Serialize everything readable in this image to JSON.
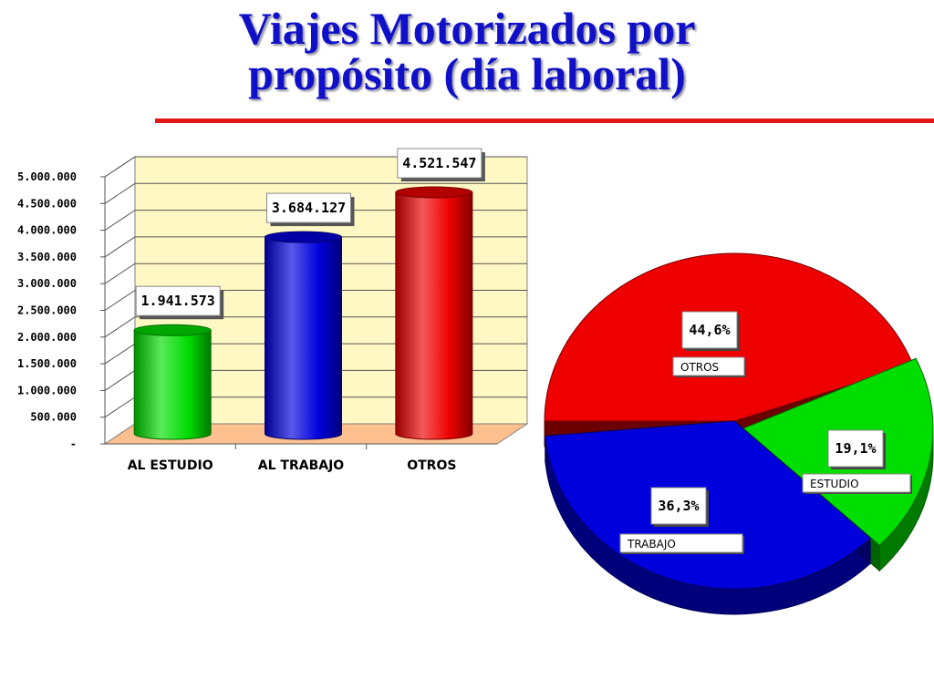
{
  "title_lines": [
    "Viajes Motorizados por",
    "propósito  (día laboral)"
  ],
  "colors": {
    "title": "#1010c8",
    "rule": "#e01818",
    "estudio": "#00dd00",
    "trabajo": "#0000dd",
    "otros": "#ee0000",
    "wall": "#fff8c4",
    "floor": "#ffc090"
  },
  "chart_data": [
    {
      "type": "bar",
      "style": "3d-cylinder",
      "categories": [
        "AL ESTUDIO",
        "AL TRABAJO",
        "OTROS"
      ],
      "values": [
        1941573,
        3684127,
        4521547
      ],
      "data_labels": [
        "1.941.573",
        "3.684.127",
        "4.521.547"
      ],
      "colors": [
        "#00dd00",
        "#0000dd",
        "#ee0000"
      ],
      "ylim": [
        0,
        5000000
      ],
      "yticks": [
        0,
        500000,
        1000000,
        1500000,
        2000000,
        2500000,
        3000000,
        3500000,
        4000000,
        4500000,
        5000000
      ],
      "ytick_labels": [
        "-",
        "500.000",
        "1.000.000",
        "1.500.000",
        "2.000.000",
        "2.500.000",
        "3.000.000",
        "3.500.000",
        "4.000.000",
        "4.500.000",
        "5.000.000"
      ],
      "grid": true,
      "legend": "none"
    },
    {
      "type": "pie",
      "style": "3d-exploded",
      "slices": [
        {
          "label": "OTROS",
          "value": 44.6,
          "display": "44,6%",
          "color": "#ee0000"
        },
        {
          "label": "ESTUDIO",
          "value": 19.1,
          "display": "19,1%",
          "color": "#00dd00"
        },
        {
          "label": "TRABAJO",
          "value": 36.3,
          "display": "36,3%",
          "color": "#0000dd"
        }
      ],
      "legend": "none"
    }
  ]
}
